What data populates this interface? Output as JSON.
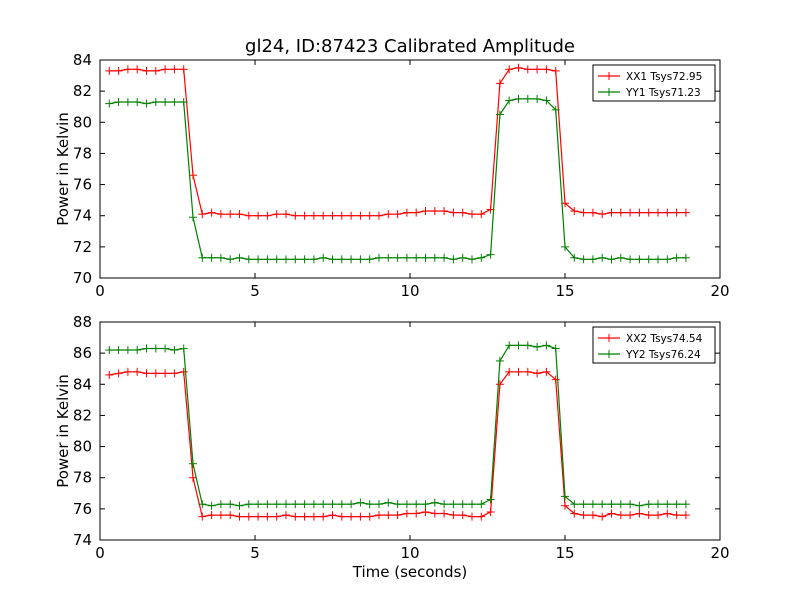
{
  "figure": {
    "title": "gl24, ID:87423 Calibrated Amplitude"
  },
  "colors": {
    "red": "#ff0000",
    "green": "#008000"
  },
  "chart_data": [
    {
      "type": "line",
      "title": "gl24, ID:87423 Calibrated Amplitude",
      "xlabel": "",
      "ylabel": "Power in Kelvin",
      "xlim": [
        0,
        20
      ],
      "ylim": [
        70,
        84
      ],
      "xticks": [
        0,
        5,
        10,
        15,
        20
      ],
      "yticks": [
        70,
        72,
        74,
        76,
        78,
        80,
        82,
        84
      ],
      "legend_position": "top-right",
      "grid": false,
      "x": [
        0.3,
        0.6,
        0.9,
        1.2,
        1.5,
        1.8,
        2.1,
        2.4,
        2.7,
        3.0,
        3.3,
        3.6,
        3.9,
        4.2,
        4.5,
        4.8,
        5.1,
        5.4,
        5.7,
        6.0,
        6.3,
        6.6,
        6.9,
        7.2,
        7.5,
        7.8,
        8.1,
        8.4,
        8.7,
        9.0,
        9.3,
        9.6,
        9.9,
        10.2,
        10.5,
        10.8,
        11.1,
        11.4,
        11.7,
        12.0,
        12.3,
        12.6,
        12.9,
        13.2,
        13.5,
        13.8,
        14.1,
        14.4,
        14.7,
        15.0,
        15.3,
        15.6,
        15.9,
        16.2,
        16.5,
        16.8,
        17.1,
        17.4,
        17.7,
        18.0,
        18.3,
        18.6,
        18.9
      ],
      "series": [
        {
          "name": "XX1 Tsys72.95",
          "color": "#ff0000",
          "values": [
            83.3,
            83.3,
            83.4,
            83.4,
            83.3,
            83.3,
            83.4,
            83.4,
            83.4,
            76.6,
            74.1,
            74.2,
            74.1,
            74.1,
            74.1,
            74.0,
            74.0,
            74.0,
            74.1,
            74.1,
            74.0,
            74.0,
            74.0,
            74.0,
            74.0,
            74.0,
            74.0,
            74.0,
            74.0,
            74.0,
            74.1,
            74.1,
            74.2,
            74.2,
            74.3,
            74.3,
            74.3,
            74.2,
            74.2,
            74.1,
            74.1,
            74.4,
            82.5,
            83.4,
            83.5,
            83.4,
            83.4,
            83.4,
            83.3,
            74.8,
            74.3,
            74.2,
            74.2,
            74.1,
            74.2,
            74.2,
            74.2,
            74.2,
            74.2,
            74.2,
            74.2,
            74.2,
            74.2
          ]
        },
        {
          "name": "YY1 Tsys71.23",
          "color": "#008000",
          "values": [
            81.2,
            81.3,
            81.3,
            81.3,
            81.2,
            81.3,
            81.3,
            81.3,
            81.3,
            73.9,
            71.3,
            71.3,
            71.3,
            71.2,
            71.3,
            71.2,
            71.2,
            71.2,
            71.2,
            71.2,
            71.2,
            71.2,
            71.2,
            71.3,
            71.2,
            71.2,
            71.2,
            71.2,
            71.2,
            71.3,
            71.3,
            71.3,
            71.3,
            71.3,
            71.3,
            71.3,
            71.3,
            71.2,
            71.3,
            71.2,
            71.3,
            71.5,
            80.5,
            81.4,
            81.5,
            81.5,
            81.5,
            81.4,
            80.8,
            72.0,
            71.3,
            71.2,
            71.2,
            71.3,
            71.2,
            71.3,
            71.2,
            71.2,
            71.2,
            71.2,
            71.2,
            71.3,
            71.3
          ]
        }
      ]
    },
    {
      "type": "line",
      "title": "",
      "xlabel": "Time (seconds)",
      "ylabel": "Power in Kelvin",
      "xlim": [
        0,
        20
      ],
      "ylim": [
        74,
        88
      ],
      "xticks": [
        0,
        5,
        10,
        15,
        20
      ],
      "yticks": [
        74,
        76,
        78,
        80,
        82,
        84,
        86,
        88
      ],
      "legend_position": "top-right",
      "grid": false,
      "x": [
        0.3,
        0.6,
        0.9,
        1.2,
        1.5,
        1.8,
        2.1,
        2.4,
        2.7,
        3.0,
        3.3,
        3.6,
        3.9,
        4.2,
        4.5,
        4.8,
        5.1,
        5.4,
        5.7,
        6.0,
        6.3,
        6.6,
        6.9,
        7.2,
        7.5,
        7.8,
        8.1,
        8.4,
        8.7,
        9.0,
        9.3,
        9.6,
        9.9,
        10.2,
        10.5,
        10.8,
        11.1,
        11.4,
        11.7,
        12.0,
        12.3,
        12.6,
        12.9,
        13.2,
        13.5,
        13.8,
        14.1,
        14.4,
        14.7,
        15.0,
        15.3,
        15.6,
        15.9,
        16.2,
        16.5,
        16.8,
        17.1,
        17.4,
        17.7,
        18.0,
        18.3,
        18.6,
        18.9
      ],
      "series": [
        {
          "name": "XX2 Tsys74.54",
          "color": "#ff0000",
          "values": [
            84.6,
            84.7,
            84.8,
            84.8,
            84.7,
            84.7,
            84.7,
            84.7,
            84.8,
            78.0,
            75.5,
            75.6,
            75.6,
            75.6,
            75.5,
            75.5,
            75.5,
            75.5,
            75.5,
            75.6,
            75.5,
            75.5,
            75.5,
            75.5,
            75.6,
            75.5,
            75.5,
            75.5,
            75.5,
            75.6,
            75.6,
            75.6,
            75.7,
            75.7,
            75.8,
            75.7,
            75.7,
            75.6,
            75.6,
            75.5,
            75.5,
            75.8,
            84.0,
            84.8,
            84.8,
            84.8,
            84.7,
            84.8,
            84.3,
            76.2,
            75.7,
            75.6,
            75.6,
            75.5,
            75.7,
            75.6,
            75.6,
            75.7,
            75.6,
            75.6,
            75.7,
            75.6,
            75.6
          ]
        },
        {
          "name": "YY2 Tsys76.24",
          "color": "#008000",
          "values": [
            86.2,
            86.2,
            86.2,
            86.2,
            86.3,
            86.3,
            86.3,
            86.2,
            86.3,
            78.9,
            76.3,
            76.2,
            76.3,
            76.3,
            76.2,
            76.3,
            76.3,
            76.3,
            76.3,
            76.3,
            76.3,
            76.3,
            76.3,
            76.3,
            76.3,
            76.3,
            76.3,
            76.4,
            76.3,
            76.3,
            76.4,
            76.3,
            76.3,
            76.3,
            76.3,
            76.4,
            76.3,
            76.3,
            76.3,
            76.3,
            76.3,
            76.6,
            85.5,
            86.5,
            86.5,
            86.5,
            86.4,
            86.5,
            86.3,
            76.8,
            76.3,
            76.3,
            76.3,
            76.3,
            76.3,
            76.3,
            76.3,
            76.2,
            76.3,
            76.3,
            76.3,
            76.3,
            76.3
          ]
        }
      ]
    }
  ]
}
